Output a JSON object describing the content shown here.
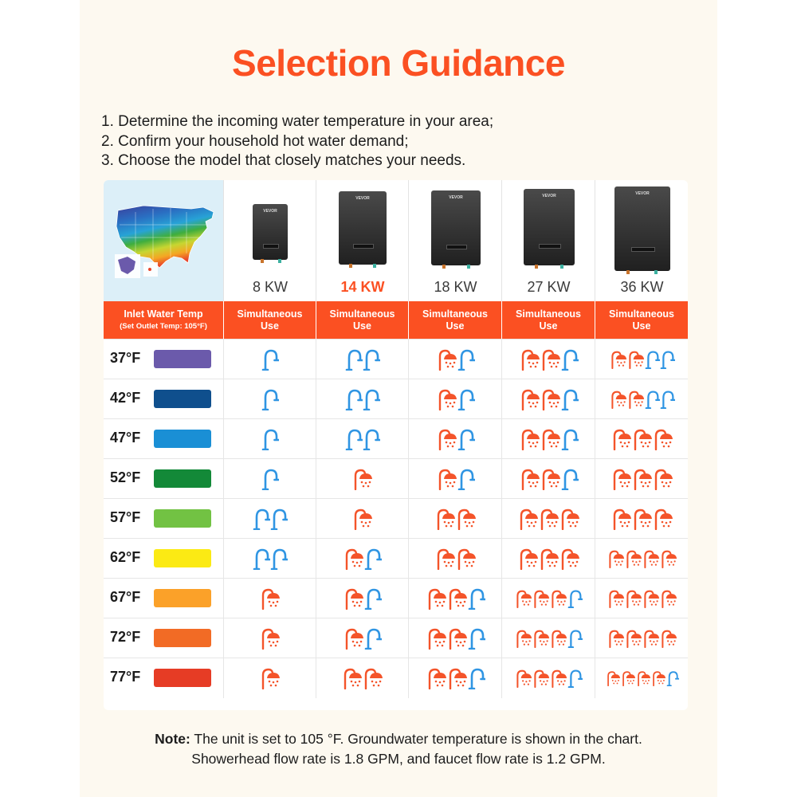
{
  "title": "Selection Guidance",
  "steps": [
    "1. Determine the incoming water temperature in your area;",
    "2. Confirm your household hot water demand;",
    "3. Choose the model that closely matches your needs."
  ],
  "models": [
    {
      "kw": "8 KW",
      "highlight": false
    },
    {
      "kw": "14 KW",
      "highlight": true
    },
    {
      "kw": "18 KW",
      "highlight": false
    },
    {
      "kw": "27 KW",
      "highlight": false
    },
    {
      "kw": "36 KW",
      "highlight": false
    }
  ],
  "brand_logo": "VEVOR",
  "header": {
    "inlet_title": "Inlet Water Temp",
    "inlet_sub": "(Set Outlet Temp: 105°F)",
    "use_line1": "Simultaneous",
    "use_line2": "Use"
  },
  "colors": {
    "accent": "#fb5022",
    "shower": "#f4542a",
    "faucet": "#2f95e3"
  },
  "rows": [
    {
      "temp": "37°F",
      "color": "#6b5aab",
      "cells": [
        "F",
        "FF",
        "SF",
        "SSF",
        "SSFF"
      ]
    },
    {
      "temp": "42°F",
      "color": "#0f4f8d",
      "cells": [
        "F",
        "FF",
        "SF",
        "SSF",
        "SSFF"
      ]
    },
    {
      "temp": "47°F",
      "color": "#1a8fd5",
      "cells": [
        "F",
        "FF",
        "SF",
        "SSF",
        "SSS"
      ]
    },
    {
      "temp": "52°F",
      "color": "#138938",
      "cells": [
        "F",
        "S",
        "SF",
        "SSF",
        "SSS"
      ]
    },
    {
      "temp": "57°F",
      "color": "#72c243",
      "cells": [
        "FF",
        "S",
        "SS",
        "SSS",
        "SSS"
      ]
    },
    {
      "temp": "62°F",
      "color": "#fbea14",
      "cells": [
        "FF",
        "SF",
        "SS",
        "SSS",
        "SSSS"
      ]
    },
    {
      "temp": "67°F",
      "color": "#fba129",
      "cells": [
        "S",
        "SF",
        "SSF",
        "SSSF",
        "SSSS"
      ]
    },
    {
      "temp": "72°F",
      "color": "#f26b25",
      "cells": [
        "S",
        "SF",
        "SSF",
        "SSSF",
        "SSSS"
      ]
    },
    {
      "temp": "77°F",
      "color": "#e63c25",
      "cells": [
        "S",
        "SS",
        "SSF",
        "SSSF",
        "SSSSF"
      ]
    }
  ],
  "note_label": "Note:",
  "note_line1": " The unit is set to 105 °F. Groundwater temperature is shown in the chart.",
  "note_line2": "Showerhead flow rate is 1.8 GPM, and faucet flow rate is 1.2 GPM."
}
